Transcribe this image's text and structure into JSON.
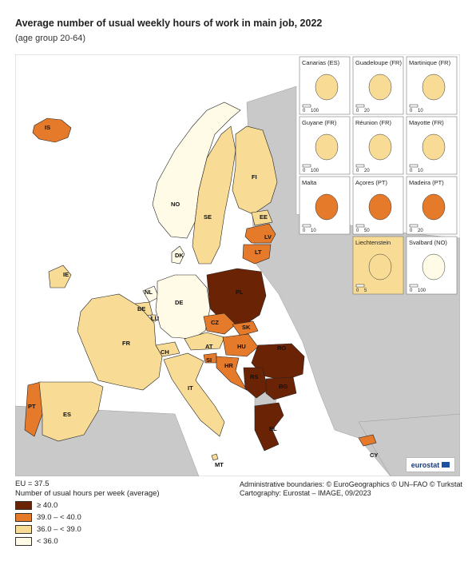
{
  "title": "Average number of usual weekly hours of work in main job, 2022",
  "subtitle": "(age group 20-64)",
  "legend": {
    "eu_average": "EU = 37.5",
    "unit": "Number of usual hours per week (average)",
    "classes": [
      {
        "label": "≥ 40.0",
        "color": "#6b2306"
      },
      {
        "label": "39.0 – < 40.0",
        "color": "#e57a2a"
      },
      {
        "label": "36.0 – < 39.0",
        "color": "#f8dc95"
      },
      {
        "label": "< 36.0",
        "color": "#fffbe6"
      }
    ],
    "no_data_color": "#c9c9c9",
    "sea_color": "#ffffff"
  },
  "credits": {
    "boundaries": "Administrative boundaries: © EuroGeographics © UN–FAO © Turkstat",
    "cartography": "Cartography: Eurostat – IMAGE, 09/2023"
  },
  "logo": "eurostat",
  "countries": [
    {
      "code": "IS",
      "class": 1
    },
    {
      "code": "NO",
      "class": 3
    },
    {
      "code": "SE",
      "class": 2
    },
    {
      "code": "FI",
      "class": 2
    },
    {
      "code": "EE",
      "class": 2
    },
    {
      "code": "LV",
      "class": 1
    },
    {
      "code": "LT",
      "class": 1
    },
    {
      "code": "DK",
      "class": 3
    },
    {
      "code": "IE",
      "class": 2
    },
    {
      "code": "NL",
      "class": 3
    },
    {
      "code": "BE",
      "class": 2
    },
    {
      "code": "LU",
      "class": 2
    },
    {
      "code": "DE",
      "class": 3
    },
    {
      "code": "PL",
      "class": 0
    },
    {
      "code": "CZ",
      "class": 1
    },
    {
      "code": "SK",
      "class": 1
    },
    {
      "code": "AT",
      "class": 2
    },
    {
      "code": "HU",
      "class": 1
    },
    {
      "code": "CH",
      "class": 2
    },
    {
      "code": "FR",
      "class": 2
    },
    {
      "code": "SI",
      "class": 1
    },
    {
      "code": "HR",
      "class": 1
    },
    {
      "code": "RO",
      "class": 0
    },
    {
      "code": "RS",
      "class": 0
    },
    {
      "code": "BG",
      "class": 0
    },
    {
      "code": "IT",
      "class": 2
    },
    {
      "code": "PT",
      "class": 1
    },
    {
      "code": "ES",
      "class": 2
    },
    {
      "code": "EL",
      "class": 0
    },
    {
      "code": "MT",
      "class": 2
    },
    {
      "code": "CY",
      "class": 1
    }
  ],
  "insets": [
    {
      "name": "Canarias (ES)",
      "scale": [
        "0",
        "100"
      ]
    },
    {
      "name": "Guadeloupe (FR)",
      "scale": [
        "0",
        "20"
      ]
    },
    {
      "name": "Martinique (FR)",
      "scale": [
        "0",
        "10"
      ]
    },
    {
      "name": "Guyane (FR)",
      "scale": [
        "0",
        "100"
      ]
    },
    {
      "name": "Réunion (FR)",
      "scale": [
        "0",
        "20"
      ]
    },
    {
      "name": "Mayotte (FR)",
      "scale": [
        "0",
        "10"
      ]
    },
    {
      "name": "Malta",
      "scale": [
        "0",
        "10"
      ]
    },
    {
      "name": "Açores (PT)",
      "scale": [
        "0",
        "50"
      ]
    },
    {
      "name": "Madeira (PT)",
      "scale": [
        "0",
        "20"
      ]
    },
    {
      "name": "Liechtenstein",
      "scale": [
        "0",
        "5"
      ]
    },
    {
      "name": "Svalbard (NO)",
      "scale": [
        "0",
        "100"
      ]
    }
  ]
}
